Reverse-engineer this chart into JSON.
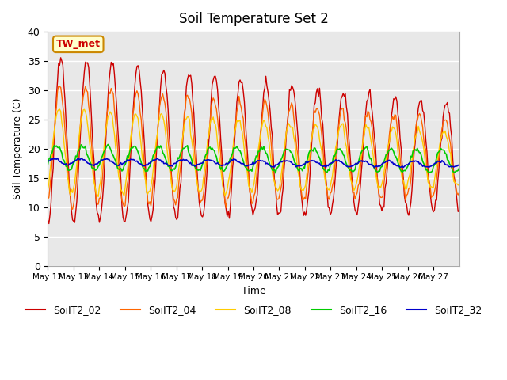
{
  "title": "Soil Temperature Set 2",
  "xlabel": "Time",
  "ylabel": "Soil Temperature (C)",
  "ylim": [
    0,
    40
  ],
  "yticks": [
    0,
    5,
    10,
    15,
    20,
    25,
    30,
    35,
    40
  ],
  "colors": {
    "SoilT2_02": "#cc0000",
    "SoilT2_04": "#ff6600",
    "SoilT2_08": "#ffcc00",
    "SoilT2_16": "#00cc00",
    "SoilT2_32": "#0000cc"
  },
  "annotation_text": "TW_met",
  "annotation_bg": "#ffffcc",
  "annotation_edge": "#cc8800",
  "background_color": "#e8e8e8",
  "x_tick_labels": [
    "May 12",
    "May 13",
    "May 14",
    "May 15",
    "May 16",
    "May 17",
    "May 18",
    "May 19",
    "May 20",
    "May 21",
    "May 22",
    "May 23",
    "May 24",
    "May 25",
    "May 26",
    "May 27"
  ]
}
